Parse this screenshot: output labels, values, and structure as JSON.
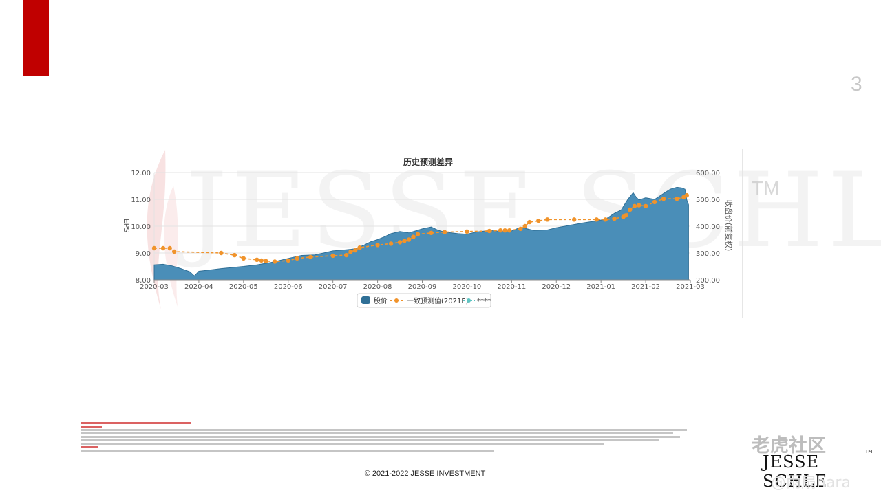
{
  "slide": {
    "page_number": "3",
    "copyright": "© 2021-2022 JESSE INVESTMENT"
  },
  "watermark": {
    "text": "JESSE SCHLE",
    "tm": "TM"
  },
  "footer": {
    "logo_text": "JESSE SCHLE",
    "logo_tm": "TM",
    "site_watermark": "老虎社区",
    "weibo_watermark": "@雨扇hara"
  },
  "colors": {
    "brand_red": "#c00000",
    "area_fill": "#4a8eb8",
    "area_stroke": "#2f6f96",
    "consensus_line": "#f0932b",
    "legend_third": "#5ec4c2"
  },
  "chart_data": {
    "type": "area",
    "title": "历史预测差异",
    "x_ticks": [
      "2020-03",
      "2020-04",
      "2020-05",
      "2020-06",
      "2020-07",
      "2020-08",
      "2020-09",
      "2020-10",
      "2020-11",
      "2020-12",
      "2021-01",
      "2021-02",
      "2021-03"
    ],
    "x_range": [
      0,
      12
    ],
    "y_left": {
      "label": "EPS",
      "range": [
        8.0,
        12.0
      ],
      "ticks": [
        "8.00",
        "9.00",
        "10.00",
        "11.00",
        "12.00"
      ]
    },
    "y_right": {
      "label": "收盘价(前复权)",
      "range": [
        200,
        600
      ],
      "ticks": [
        "200.00",
        "300.00",
        "400.00",
        "500.00",
        "600.00"
      ]
    },
    "grid": true,
    "legend_position": "bottom",
    "series": [
      {
        "name": "股价",
        "kind": "area",
        "axis": "right",
        "points": [
          [
            0.0,
            256
          ],
          [
            0.2,
            258
          ],
          [
            0.4,
            252
          ],
          [
            0.6,
            242
          ],
          [
            0.8,
            230
          ],
          [
            0.9,
            214
          ],
          [
            1.0,
            232
          ],
          [
            1.2,
            236
          ],
          [
            1.5,
            242
          ],
          [
            1.8,
            247
          ],
          [
            2.0,
            250
          ],
          [
            2.3,
            256
          ],
          [
            2.6,
            264
          ],
          [
            3.0,
            280
          ],
          [
            3.3,
            291
          ],
          [
            3.6,
            293
          ],
          [
            3.9,
            304
          ],
          [
            4.0,
            308
          ],
          [
            4.3,
            312
          ],
          [
            4.5,
            316
          ],
          [
            4.7,
            330
          ],
          [
            4.85,
            342
          ],
          [
            5.0,
            350
          ],
          [
            5.15,
            360
          ],
          [
            5.3,
            372
          ],
          [
            5.5,
            380
          ],
          [
            5.7,
            375
          ],
          [
            6.0,
            390
          ],
          [
            6.2,
            397
          ],
          [
            6.35,
            385
          ],
          [
            6.5,
            378
          ],
          [
            6.8,
            372
          ],
          [
            7.0,
            370
          ],
          [
            7.2,
            378
          ],
          [
            7.5,
            384
          ],
          [
            7.8,
            380
          ],
          [
            8.0,
            382
          ],
          [
            8.2,
            396
          ],
          [
            8.5,
            384
          ],
          [
            8.8,
            386
          ],
          [
            9.0,
            394
          ],
          [
            9.3,
            403
          ],
          [
            9.6,
            412
          ],
          [
            9.9,
            420
          ],
          [
            10.1,
            426
          ],
          [
            10.3,
            448
          ],
          [
            10.45,
            460
          ],
          [
            10.6,
            500
          ],
          [
            10.72,
            525
          ],
          [
            10.78,
            510
          ],
          [
            10.85,
            498
          ],
          [
            11.0,
            506
          ],
          [
            11.2,
            500
          ],
          [
            11.4,
            522
          ],
          [
            11.55,
            538
          ],
          [
            11.7,
            545
          ],
          [
            11.8,
            543
          ],
          [
            11.88,
            538
          ],
          [
            11.92,
            498
          ],
          [
            11.96,
            480
          ]
        ]
      },
      {
        "name": "一致预测值(2021E)",
        "kind": "line",
        "axis": "left",
        "points": [
          [
            0.0,
            9.18
          ],
          [
            0.2,
            9.18
          ],
          [
            0.35,
            9.18
          ],
          [
            0.45,
            9.05
          ],
          [
            1.5,
            9.0
          ],
          [
            1.8,
            8.92
          ],
          [
            2.0,
            8.8
          ],
          [
            2.3,
            8.75
          ],
          [
            2.4,
            8.72
          ],
          [
            2.5,
            8.7
          ],
          [
            2.7,
            8.68
          ],
          [
            3.0,
            8.72
          ],
          [
            3.2,
            8.8
          ],
          [
            3.5,
            8.85
          ],
          [
            4.0,
            8.9
          ],
          [
            4.3,
            8.92
          ],
          [
            4.4,
            9.05
          ],
          [
            4.5,
            9.1
          ],
          [
            4.6,
            9.2
          ],
          [
            5.0,
            9.3
          ],
          [
            5.3,
            9.35
          ],
          [
            5.5,
            9.4
          ],
          [
            5.6,
            9.45
          ],
          [
            5.7,
            9.5
          ],
          [
            5.8,
            9.6
          ],
          [
            5.9,
            9.7
          ],
          [
            6.2,
            9.75
          ],
          [
            6.5,
            9.78
          ],
          [
            7.0,
            9.8
          ],
          [
            7.5,
            9.82
          ],
          [
            7.75,
            9.84
          ],
          [
            7.85,
            9.84
          ],
          [
            7.95,
            9.84
          ],
          [
            8.2,
            9.9
          ],
          [
            8.3,
            10.0
          ],
          [
            8.4,
            10.15
          ],
          [
            8.6,
            10.2
          ],
          [
            8.8,
            10.25
          ],
          [
            9.4,
            10.25
          ],
          [
            9.9,
            10.25
          ],
          [
            10.1,
            10.25
          ],
          [
            10.3,
            10.28
          ],
          [
            10.5,
            10.35
          ],
          [
            10.55,
            10.4
          ],
          [
            10.65,
            10.62
          ],
          [
            10.75,
            10.75
          ],
          [
            10.85,
            10.78
          ],
          [
            11.0,
            10.75
          ],
          [
            11.2,
            10.9
          ],
          [
            11.4,
            11.02
          ],
          [
            11.7,
            11.02
          ],
          [
            11.85,
            11.08
          ],
          [
            11.92,
            11.15
          ]
        ]
      },
      {
        "name": "****",
        "kind": "line",
        "axis": "left",
        "points": []
      }
    ]
  }
}
